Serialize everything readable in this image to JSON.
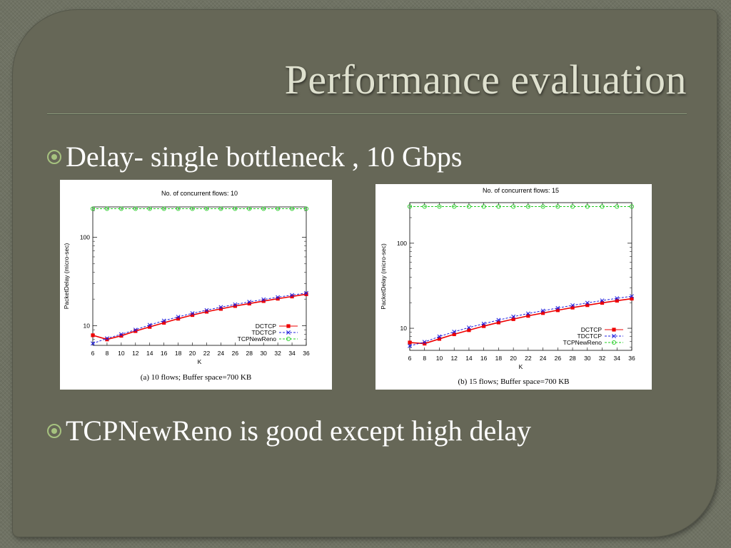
{
  "slide": {
    "title": "Performance evaluation",
    "bullets": [
      "Delay- single bottleneck , 10 Gbps",
      "TCPNewReno is good except high delay"
    ]
  },
  "colors": {
    "dctcp": "#ee0000",
    "tdctcp": "#2020dd",
    "tcpnewreno": "#22cc22",
    "bullet_mark": "#a6c27f",
    "title_text": "#dfe1cf"
  },
  "chart_data": [
    {
      "type": "line",
      "title": "No. of concurrent flows: 10",
      "caption": "(a) 10 flows; Buffer space=700 KB",
      "xlabel": "K",
      "ylabel": "PacketDelay (micro-sec)",
      "y_scale": "log",
      "xlim": [
        6,
        36
      ],
      "ylim": [
        6,
        220
      ],
      "x_ticks": [
        6,
        8,
        10,
        12,
        14,
        16,
        18,
        20,
        22,
        24,
        26,
        28,
        30,
        32,
        34,
        36
      ],
      "y_ticks": [
        10,
        100
      ],
      "grid": false,
      "legend_position": "bottom-right",
      "x": [
        6,
        8,
        10,
        12,
        14,
        16,
        18,
        20,
        22,
        24,
        26,
        28,
        30,
        32,
        34,
        36
      ],
      "series": [
        {
          "name": "DCTCP",
          "marker": "filled-square",
          "values": [
            7.8,
            7.0,
            7.7,
            8.7,
            9.7,
            10.8,
            12.0,
            13.2,
            14.4,
            15.5,
            16.7,
            17.8,
            19.0,
            20.2,
            21.4,
            22.7
          ]
        },
        {
          "name": "TDCTCP",
          "marker": "x",
          "values": [
            6.3,
            7.2,
            8.0,
            9.0,
            10.2,
            11.4,
            12.6,
            13.8,
            15.0,
            16.2,
            17.4,
            18.6,
            19.8,
            21.0,
            22.2,
            23.4
          ]
        },
        {
          "name": "TCPNewReno",
          "marker": "hollow-circle",
          "values": [
            210,
            210,
            210,
            210,
            210,
            210,
            210,
            210,
            210,
            210,
            210,
            210,
            210,
            210,
            210,
            210
          ]
        }
      ]
    },
    {
      "type": "line",
      "title": "No. of concurrent flows: 15",
      "caption": "(b) 15 flows; Buffer space=700 KB",
      "xlabel": "K",
      "ylabel": "PacketDelay (micro-sec)",
      "y_scale": "log",
      "xlim": [
        6,
        36
      ],
      "ylim": [
        5.5,
        300
      ],
      "x_ticks": [
        6,
        8,
        10,
        12,
        14,
        16,
        18,
        20,
        22,
        24,
        26,
        28,
        30,
        32,
        34,
        36
      ],
      "y_ticks": [
        10,
        100
      ],
      "grid": false,
      "legend_position": "bottom-right",
      "x": [
        6,
        8,
        10,
        12,
        14,
        16,
        18,
        20,
        22,
        24,
        26,
        28,
        30,
        32,
        34,
        36
      ],
      "series": [
        {
          "name": "DCTCP",
          "marker": "filled-square",
          "values": [
            6.8,
            6.6,
            7.5,
            8.5,
            9.5,
            10.6,
            11.7,
            12.8,
            14.0,
            15.1,
            16.3,
            17.5,
            18.7,
            19.9,
            21.1,
            22.3
          ]
        },
        {
          "name": "TDCTCP",
          "marker": "x",
          "values": [
            6.2,
            6.9,
            8.0,
            9.1,
            10.2,
            11.3,
            12.5,
            13.7,
            14.9,
            16.1,
            17.3,
            18.6,
            19.9,
            21.2,
            22.5,
            23.8
          ]
        },
        {
          "name": "TCPNewReno",
          "marker": "hollow-circle",
          "values": [
            270,
            270,
            270,
            270,
            270,
            270,
            270,
            270,
            270,
            270,
            270,
            270,
            270,
            270,
            270,
            270
          ]
        }
      ]
    }
  ]
}
